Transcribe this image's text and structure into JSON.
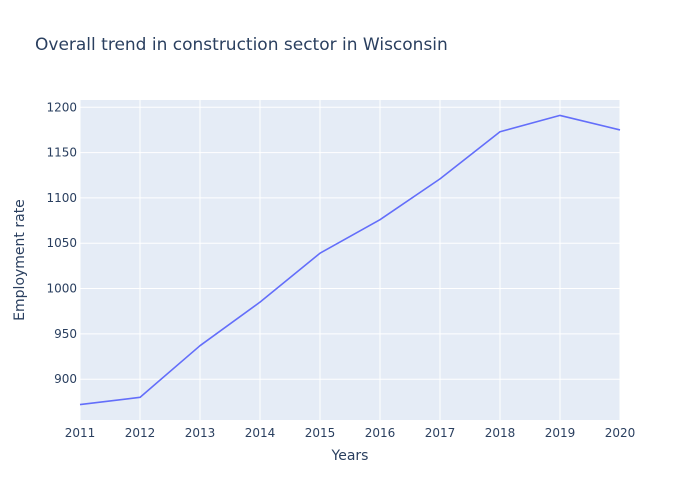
{
  "chart_data": {
    "type": "line",
    "title": "Overall trend in construction sector in Wisconsin",
    "xlabel": "Years",
    "ylabel": "Employment rate",
    "x": [
      2011,
      2012,
      2013,
      2014,
      2015,
      2016,
      2017,
      2018,
      2019,
      2020
    ],
    "series": [
      {
        "values": [
          872,
          880,
          937,
          985,
          1039,
          1076,
          1121,
          1173,
          1191,
          1175
        ]
      }
    ],
    "xlim": [
      2011,
      2020
    ],
    "ylim": [
      855,
      1208
    ],
    "y_ticks": [
      900,
      950,
      1000,
      1050,
      1100,
      1150,
      1200
    ],
    "x_ticks": [
      2011,
      2012,
      2013,
      2014,
      2015,
      2016,
      2017,
      2018,
      2019,
      2020
    ],
    "grid": true,
    "colors": {
      "plot_background": "#e5ecf6",
      "grid": "#ffffff",
      "line": "#636efa",
      "text": "#2a3f5f"
    }
  }
}
